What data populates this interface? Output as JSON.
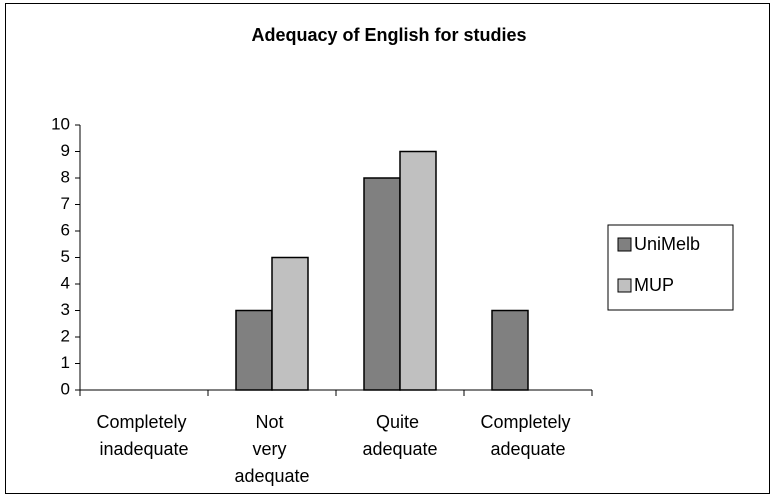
{
  "chart_data": {
    "type": "bar",
    "title": "Adequacy of English for studies",
    "categories": [
      "Completely inadequate",
      "Not very adequate",
      "Quite adequate",
      "Completely adequate"
    ],
    "series": [
      {
        "name": "UniMelb",
        "color": "#808080",
        "values": [
          0,
          3,
          8,
          3
        ]
      },
      {
        "name": "MUP",
        "color": "#c0c0c0",
        "values": [
          0,
          5,
          9,
          0
        ]
      }
    ],
    "ylim": [
      0,
      10
    ],
    "yticks": [
      0,
      1,
      2,
      3,
      4,
      5,
      6,
      7,
      8,
      9,
      10
    ],
    "grid": false,
    "legend": "right"
  }
}
